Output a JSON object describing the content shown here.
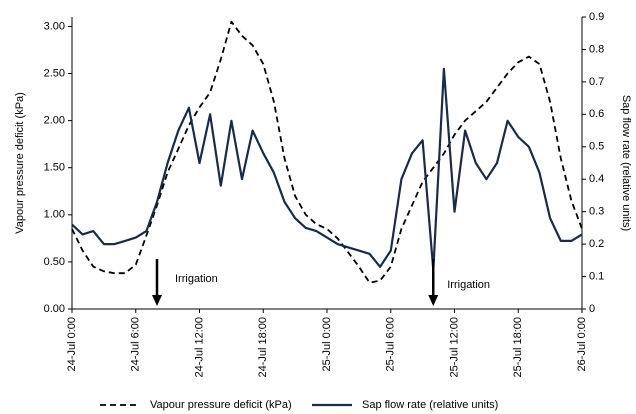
{
  "chart_data": {
    "type": "line",
    "x": [
      "24-Jul 0:00",
      "24-Jul 1:00",
      "24-Jul 2:00",
      "24-Jul 3:00",
      "24-Jul 4:00",
      "24-Jul 5:00",
      "24-Jul 6:00",
      "24-Jul 7:00",
      "24-Jul 8:00",
      "24-Jul 9:00",
      "24-Jul 10:00",
      "24-Jul 11:00",
      "24-Jul 12:00",
      "24-Jul 13:00",
      "24-Jul 14:00",
      "24-Jul 15:00",
      "24-Jul 16:00",
      "24-Jul 17:00",
      "24-Jul 18:00",
      "24-Jul 19:00",
      "24-Jul 20:00",
      "24-Jul 21:00",
      "24-Jul 22:00",
      "24-Jul 23:00",
      "25-Jul 0:00",
      "25-Jul 1:00",
      "25-Jul 2:00",
      "25-Jul 3:00",
      "25-Jul 4:00",
      "25-Jul 5:00",
      "25-Jul 6:00",
      "25-Jul 7:00",
      "25-Jul 8:00",
      "25-Jul 9:00",
      "25-Jul 10:00",
      "25-Jul 11:00",
      "25-Jul 12:00",
      "25-Jul 13:00",
      "25-Jul 14:00",
      "25-Jul 15:00",
      "25-Jul 16:00",
      "25-Jul 17:00",
      "25-Jul 18:00",
      "25-Jul 19:00",
      "25-Jul 20:00",
      "25-Jul 21:00",
      "25-Jul 22:00",
      "25-Jul 23:00",
      "26-Jul 0:00"
    ],
    "xlim": [
      "24-Jul 0:00",
      "26-Jul 0:00"
    ],
    "xticks": [
      "24-Jul 0:00",
      "24-Jul 6:00",
      "24-Jul 12:00",
      "24-Jul 18:00",
      "25-Jul 0:00",
      "25-Jul 6:00",
      "25-Jul 12:00",
      "25-Jul 18:00",
      "26-Jul 0:00"
    ],
    "y_label": "Vapour pressure deficit (kPa)",
    "y2_label": "Sap flow rate (relative units)",
    "ylim": [
      0,
      3.1
    ],
    "yticks": [
      {
        "value": 0,
        "label": "0.00"
      },
      {
        "value": 0.5,
        "label": "0.50"
      },
      {
        "value": 1,
        "label": "1.00"
      },
      {
        "value": 1.5,
        "label": "1.50"
      },
      {
        "value": 2,
        "label": "2.00"
      },
      {
        "value": 2.5,
        "label": "2.50"
      },
      {
        "value": 3,
        "label": "3.00"
      }
    ],
    "y2lim": [
      0,
      0.9
    ],
    "y2ticks": [
      0,
      0.1,
      0.2,
      0.3,
      0.4,
      0.5,
      0.6,
      0.7,
      0.8,
      0.9
    ],
    "series": [
      {
        "name": "Vapour pressure deficit (kPa)",
        "color": "#000000",
        "linestyle": "dashed",
        "values": [
          0.85,
          0.62,
          0.45,
          0.4,
          0.38,
          0.38,
          0.47,
          0.78,
          1.1,
          1.45,
          1.7,
          1.95,
          2.14,
          2.3,
          2.65,
          3.05,
          2.9,
          2.8,
          2.6,
          2.2,
          1.6,
          1.2,
          1.0,
          0.9,
          0.85,
          0.75,
          0.6,
          0.45,
          0.28,
          0.3,
          0.45,
          0.85,
          1.1,
          1.35,
          1.5,
          1.65,
          1.85,
          2.0,
          2.1,
          2.2,
          2.35,
          2.5,
          2.62,
          2.68,
          2.6,
          2.2,
          1.6,
          1.15,
          0.85
        ]
      },
      {
        "name": "Sap flow rate (relative units)",
        "color": "#1a2a4a",
        "linestyle": "solid",
        "axis": "y2",
        "values": [
          0.26,
          0.23,
          0.24,
          0.2,
          0.2,
          0.21,
          0.22,
          0.24,
          0.33,
          0.45,
          0.55,
          0.62,
          0.45,
          0.6,
          0.38,
          0.58,
          0.4,
          0.55,
          0.48,
          0.42,
          0.33,
          0.28,
          0.25,
          0.24,
          0.22,
          0.2,
          0.19,
          0.18,
          0.17,
          0.13,
          0.18,
          0.4,
          0.48,
          0.52,
          0.12,
          0.74,
          0.3,
          0.55,
          0.45,
          0.4,
          0.45,
          0.58,
          0.53,
          0.5,
          0.42,
          0.28,
          0.21,
          0.21,
          0.23
        ]
      }
    ],
    "annotations": [
      {
        "text": "Irrigation",
        "x": "24-Jul 8:00"
      },
      {
        "text": "Irrigation",
        "x": "25-Jul 10:00"
      }
    ],
    "legend": "bottom"
  }
}
